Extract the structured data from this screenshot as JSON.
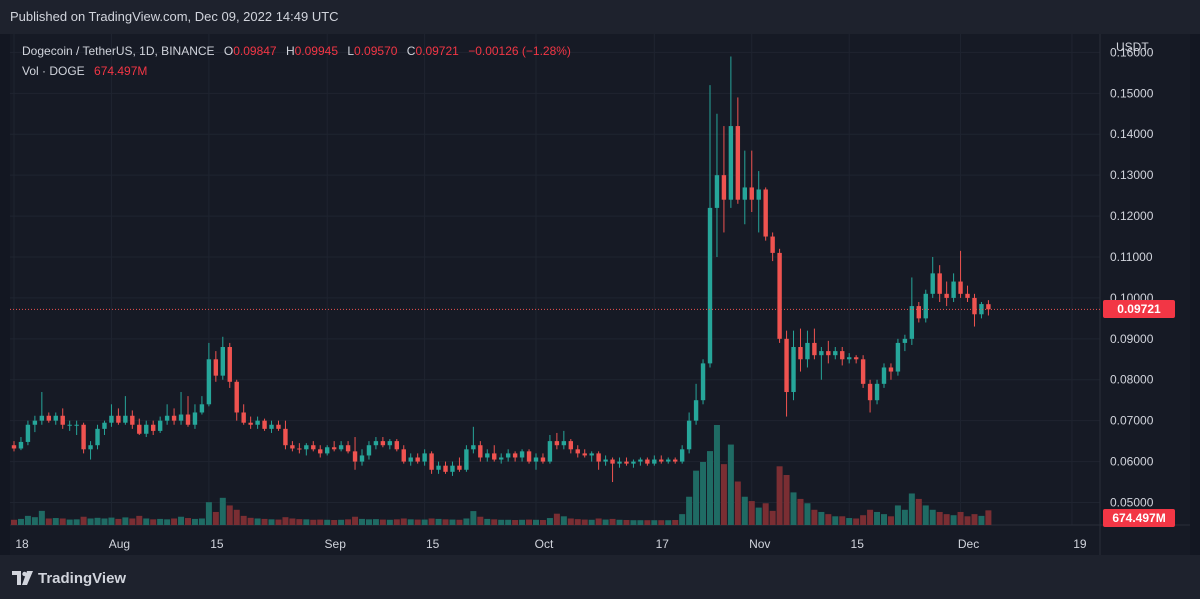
{
  "header": {
    "published": "Published on TradingView.com, Dec 09, 2022 14:49 UTC"
  },
  "legend": {
    "symbol": "Dogecoin / TetherUS, 1D, BINANCE",
    "open_label": "O",
    "open": "0.09847",
    "high_label": "H",
    "high": "0.09945",
    "low_label": "L",
    "low": "0.09570",
    "close_label": "C",
    "close": "0.09721",
    "change": "−0.00126 (−1.28%)",
    "vol_label": "Vol · DOGE",
    "vol": "674.497M"
  },
  "price_tag": "0.09721",
  "vol_tag": "674.497M",
  "footer": {
    "brand": "TradingView"
  },
  "colors": {
    "up": "#26a69a",
    "down": "#ef5350",
    "up_vol": "#1f6b64",
    "down_vol": "#7a2e33",
    "bg": "#161a25"
  },
  "chart_data": {
    "type": "candlestick",
    "currency_label": "USDT",
    "ylim": [
      0.0445,
      0.1645
    ],
    "y_ticks": [
      "0.16000",
      "0.15000",
      "0.14000",
      "0.13000",
      "0.12000",
      "0.11000",
      "0.10000",
      "0.09000",
      "0.08000",
      "0.07000",
      "0.06000",
      "0.05000"
    ],
    "x_ticks": [
      {
        "label": "18",
        "index": 0
      },
      {
        "label": "Aug",
        "index": 14
      },
      {
        "label": "15",
        "index": 28
      },
      {
        "label": "Sep",
        "index": 45
      },
      {
        "label": "15",
        "index": 59
      },
      {
        "label": "Oct",
        "index": 75
      },
      {
        "label": "17",
        "index": 92
      },
      {
        "label": "Nov",
        "index": 106
      },
      {
        "label": "15",
        "index": 120
      },
      {
        "label": "Dec",
        "index": 136
      },
      {
        "label": "19",
        "index": 152
      }
    ],
    "last_price": 0.09721,
    "volume_unit": "M DOGE",
    "volume_max": 4600,
    "candles": [
      {
        "o": 0.064,
        "h": 0.065,
        "l": 0.0625,
        "c": 0.0632,
        "v": 240
      },
      {
        "o": 0.0632,
        "h": 0.066,
        "l": 0.0628,
        "c": 0.0648,
        "v": 280
      },
      {
        "o": 0.0648,
        "h": 0.07,
        "l": 0.064,
        "c": 0.069,
        "v": 420
      },
      {
        "o": 0.069,
        "h": 0.0712,
        "l": 0.0672,
        "c": 0.07,
        "v": 360
      },
      {
        "o": 0.07,
        "h": 0.077,
        "l": 0.069,
        "c": 0.0712,
        "v": 650
      },
      {
        "o": 0.0712,
        "h": 0.072,
        "l": 0.0695,
        "c": 0.07,
        "v": 300
      },
      {
        "o": 0.07,
        "h": 0.072,
        "l": 0.069,
        "c": 0.0712,
        "v": 320
      },
      {
        "o": 0.0712,
        "h": 0.073,
        "l": 0.068,
        "c": 0.069,
        "v": 300
      },
      {
        "o": 0.069,
        "h": 0.07,
        "l": 0.0675,
        "c": 0.069,
        "v": 250
      },
      {
        "o": 0.069,
        "h": 0.07,
        "l": 0.0665,
        "c": 0.069,
        "v": 260
      },
      {
        "o": 0.069,
        "h": 0.0695,
        "l": 0.062,
        "c": 0.063,
        "v": 380
      },
      {
        "o": 0.063,
        "h": 0.065,
        "l": 0.0605,
        "c": 0.064,
        "v": 300
      },
      {
        "o": 0.064,
        "h": 0.069,
        "l": 0.063,
        "c": 0.068,
        "v": 330
      },
      {
        "o": 0.068,
        "h": 0.07,
        "l": 0.0665,
        "c": 0.0695,
        "v": 300
      },
      {
        "o": 0.0695,
        "h": 0.074,
        "l": 0.0685,
        "c": 0.0712,
        "v": 340
      },
      {
        "o": 0.0712,
        "h": 0.073,
        "l": 0.069,
        "c": 0.0695,
        "v": 280
      },
      {
        "o": 0.0695,
        "h": 0.076,
        "l": 0.069,
        "c": 0.0712,
        "v": 350
      },
      {
        "o": 0.0712,
        "h": 0.0725,
        "l": 0.068,
        "c": 0.069,
        "v": 300
      },
      {
        "o": 0.069,
        "h": 0.0705,
        "l": 0.0665,
        "c": 0.0668,
        "v": 420
      },
      {
        "o": 0.0668,
        "h": 0.07,
        "l": 0.066,
        "c": 0.069,
        "v": 300
      },
      {
        "o": 0.069,
        "h": 0.07,
        "l": 0.0665,
        "c": 0.0675,
        "v": 260
      },
      {
        "o": 0.0675,
        "h": 0.071,
        "l": 0.067,
        "c": 0.07,
        "v": 280
      },
      {
        "o": 0.07,
        "h": 0.074,
        "l": 0.069,
        "c": 0.0712,
        "v": 260
      },
      {
        "o": 0.0712,
        "h": 0.073,
        "l": 0.069,
        "c": 0.07,
        "v": 300
      },
      {
        "o": 0.07,
        "h": 0.077,
        "l": 0.069,
        "c": 0.0715,
        "v": 380
      },
      {
        "o": 0.0715,
        "h": 0.076,
        "l": 0.0685,
        "c": 0.069,
        "v": 320
      },
      {
        "o": 0.069,
        "h": 0.074,
        "l": 0.068,
        "c": 0.072,
        "v": 280
      },
      {
        "o": 0.072,
        "h": 0.076,
        "l": 0.0715,
        "c": 0.074,
        "v": 300
      },
      {
        "o": 0.074,
        "h": 0.089,
        "l": 0.0735,
        "c": 0.085,
        "v": 1050
      },
      {
        "o": 0.085,
        "h": 0.087,
        "l": 0.0795,
        "c": 0.081,
        "v": 600
      },
      {
        "o": 0.081,
        "h": 0.0905,
        "l": 0.08,
        "c": 0.088,
        "v": 1250
      },
      {
        "o": 0.088,
        "h": 0.089,
        "l": 0.078,
        "c": 0.0795,
        "v": 900
      },
      {
        "o": 0.0795,
        "h": 0.08,
        "l": 0.07,
        "c": 0.072,
        "v": 700
      },
      {
        "o": 0.072,
        "h": 0.074,
        "l": 0.069,
        "c": 0.0695,
        "v": 420
      },
      {
        "o": 0.0695,
        "h": 0.071,
        "l": 0.068,
        "c": 0.069,
        "v": 330
      },
      {
        "o": 0.069,
        "h": 0.071,
        "l": 0.068,
        "c": 0.07,
        "v": 300
      },
      {
        "o": 0.07,
        "h": 0.0705,
        "l": 0.0675,
        "c": 0.068,
        "v": 280
      },
      {
        "o": 0.068,
        "h": 0.07,
        "l": 0.067,
        "c": 0.069,
        "v": 260
      },
      {
        "o": 0.069,
        "h": 0.07,
        "l": 0.0675,
        "c": 0.068,
        "v": 250
      },
      {
        "o": 0.068,
        "h": 0.07,
        "l": 0.063,
        "c": 0.064,
        "v": 360
      },
      {
        "o": 0.064,
        "h": 0.065,
        "l": 0.0625,
        "c": 0.0632,
        "v": 300
      },
      {
        "o": 0.0632,
        "h": 0.0645,
        "l": 0.062,
        "c": 0.063,
        "v": 270
      },
      {
        "o": 0.063,
        "h": 0.0645,
        "l": 0.0615,
        "c": 0.064,
        "v": 260
      },
      {
        "o": 0.064,
        "h": 0.065,
        "l": 0.0625,
        "c": 0.063,
        "v": 240
      },
      {
        "o": 0.063,
        "h": 0.064,
        "l": 0.061,
        "c": 0.062,
        "v": 250
      },
      {
        "o": 0.062,
        "h": 0.064,
        "l": 0.0615,
        "c": 0.0635,
        "v": 240
      },
      {
        "o": 0.0635,
        "h": 0.065,
        "l": 0.0625,
        "c": 0.063,
        "v": 230
      },
      {
        "o": 0.063,
        "h": 0.065,
        "l": 0.0625,
        "c": 0.064,
        "v": 240
      },
      {
        "o": 0.064,
        "h": 0.065,
        "l": 0.062,
        "c": 0.0625,
        "v": 260
      },
      {
        "o": 0.0625,
        "h": 0.066,
        "l": 0.058,
        "c": 0.06,
        "v": 380
      },
      {
        "o": 0.06,
        "h": 0.063,
        "l": 0.059,
        "c": 0.0615,
        "v": 280
      },
      {
        "o": 0.0615,
        "h": 0.065,
        "l": 0.0605,
        "c": 0.064,
        "v": 260
      },
      {
        "o": 0.064,
        "h": 0.066,
        "l": 0.063,
        "c": 0.065,
        "v": 270
      },
      {
        "o": 0.065,
        "h": 0.066,
        "l": 0.0635,
        "c": 0.064,
        "v": 250
      },
      {
        "o": 0.064,
        "h": 0.0655,
        "l": 0.063,
        "c": 0.065,
        "v": 240
      },
      {
        "o": 0.065,
        "h": 0.0655,
        "l": 0.0625,
        "c": 0.063,
        "v": 260
      },
      {
        "o": 0.063,
        "h": 0.064,
        "l": 0.0595,
        "c": 0.06,
        "v": 300
      },
      {
        "o": 0.06,
        "h": 0.062,
        "l": 0.059,
        "c": 0.061,
        "v": 260
      },
      {
        "o": 0.061,
        "h": 0.062,
        "l": 0.0595,
        "c": 0.06,
        "v": 250
      },
      {
        "o": 0.06,
        "h": 0.063,
        "l": 0.059,
        "c": 0.062,
        "v": 250
      },
      {
        "o": 0.062,
        "h": 0.0625,
        "l": 0.057,
        "c": 0.058,
        "v": 300
      },
      {
        "o": 0.058,
        "h": 0.06,
        "l": 0.057,
        "c": 0.059,
        "v": 280
      },
      {
        "o": 0.059,
        "h": 0.06,
        "l": 0.057,
        "c": 0.0575,
        "v": 260
      },
      {
        "o": 0.0575,
        "h": 0.06,
        "l": 0.0565,
        "c": 0.059,
        "v": 250
      },
      {
        "o": 0.059,
        "h": 0.061,
        "l": 0.0575,
        "c": 0.058,
        "v": 240
      },
      {
        "o": 0.058,
        "h": 0.064,
        "l": 0.0575,
        "c": 0.063,
        "v": 300
      },
      {
        "o": 0.063,
        "h": 0.0685,
        "l": 0.062,
        "c": 0.064,
        "v": 640
      },
      {
        "o": 0.064,
        "h": 0.065,
        "l": 0.06,
        "c": 0.061,
        "v": 380
      },
      {
        "o": 0.061,
        "h": 0.063,
        "l": 0.06,
        "c": 0.062,
        "v": 280
      },
      {
        "o": 0.062,
        "h": 0.064,
        "l": 0.06,
        "c": 0.0605,
        "v": 260
      },
      {
        "o": 0.0605,
        "h": 0.062,
        "l": 0.0595,
        "c": 0.061,
        "v": 240
      },
      {
        "o": 0.061,
        "h": 0.063,
        "l": 0.06,
        "c": 0.062,
        "v": 240
      },
      {
        "o": 0.062,
        "h": 0.0625,
        "l": 0.06,
        "c": 0.061,
        "v": 230
      },
      {
        "o": 0.061,
        "h": 0.063,
        "l": 0.06,
        "c": 0.0625,
        "v": 240
      },
      {
        "o": 0.0625,
        "h": 0.063,
        "l": 0.0595,
        "c": 0.06,
        "v": 250
      },
      {
        "o": 0.06,
        "h": 0.062,
        "l": 0.058,
        "c": 0.061,
        "v": 240
      },
      {
        "o": 0.061,
        "h": 0.062,
        "l": 0.0595,
        "c": 0.06,
        "v": 230
      },
      {
        "o": 0.06,
        "h": 0.0665,
        "l": 0.0595,
        "c": 0.065,
        "v": 320
      },
      {
        "o": 0.065,
        "h": 0.067,
        "l": 0.063,
        "c": 0.064,
        "v": 520
      },
      {
        "o": 0.064,
        "h": 0.0675,
        "l": 0.063,
        "c": 0.065,
        "v": 400
      },
      {
        "o": 0.065,
        "h": 0.0655,
        "l": 0.062,
        "c": 0.063,
        "v": 300
      },
      {
        "o": 0.063,
        "h": 0.064,
        "l": 0.061,
        "c": 0.062,
        "v": 270
      },
      {
        "o": 0.062,
        "h": 0.063,
        "l": 0.061,
        "c": 0.0615,
        "v": 250
      },
      {
        "o": 0.0615,
        "h": 0.0625,
        "l": 0.06,
        "c": 0.062,
        "v": 240
      },
      {
        "o": 0.062,
        "h": 0.0625,
        "l": 0.058,
        "c": 0.06,
        "v": 300
      },
      {
        "o": 0.06,
        "h": 0.0615,
        "l": 0.059,
        "c": 0.0605,
        "v": 250
      },
      {
        "o": 0.0605,
        "h": 0.061,
        "l": 0.055,
        "c": 0.0595,
        "v": 280
      },
      {
        "o": 0.0595,
        "h": 0.061,
        "l": 0.0585,
        "c": 0.06,
        "v": 240
      },
      {
        "o": 0.06,
        "h": 0.061,
        "l": 0.059,
        "c": 0.0595,
        "v": 230
      },
      {
        "o": 0.0595,
        "h": 0.0605,
        "l": 0.0585,
        "c": 0.06,
        "v": 220
      },
      {
        "o": 0.06,
        "h": 0.061,
        "l": 0.059,
        "c": 0.0605,
        "v": 220
      },
      {
        "o": 0.0605,
        "h": 0.061,
        "l": 0.059,
        "c": 0.0595,
        "v": 220
      },
      {
        "o": 0.0595,
        "h": 0.0615,
        "l": 0.059,
        "c": 0.0605,
        "v": 220
      },
      {
        "o": 0.0605,
        "h": 0.0615,
        "l": 0.0595,
        "c": 0.06,
        "v": 220
      },
      {
        "o": 0.06,
        "h": 0.061,
        "l": 0.0595,
        "c": 0.0605,
        "v": 220
      },
      {
        "o": 0.0605,
        "h": 0.061,
        "l": 0.0595,
        "c": 0.06,
        "v": 230
      },
      {
        "o": 0.06,
        "h": 0.064,
        "l": 0.0595,
        "c": 0.063,
        "v": 500
      },
      {
        "o": 0.063,
        "h": 0.072,
        "l": 0.062,
        "c": 0.07,
        "v": 1300
      },
      {
        "o": 0.07,
        "h": 0.079,
        "l": 0.069,
        "c": 0.075,
        "v": 2500
      },
      {
        "o": 0.075,
        "h": 0.085,
        "l": 0.074,
        "c": 0.084,
        "v": 2900
      },
      {
        "o": 0.084,
        "h": 0.152,
        "l": 0.083,
        "c": 0.122,
        "v": 3400
      },
      {
        "o": 0.122,
        "h": 0.145,
        "l": 0.11,
        "c": 0.13,
        "v": 4600
      },
      {
        "o": 0.13,
        "h": 0.142,
        "l": 0.116,
        "c": 0.124,
        "v": 2800
      },
      {
        "o": 0.124,
        "h": 0.159,
        "l": 0.122,
        "c": 0.142,
        "v": 3700
      },
      {
        "o": 0.142,
        "h": 0.149,
        "l": 0.123,
        "c": 0.124,
        "v": 2000
      },
      {
        "o": 0.124,
        "h": 0.136,
        "l": 0.118,
        "c": 0.127,
        "v": 1300
      },
      {
        "o": 0.127,
        "h": 0.136,
        "l": 0.121,
        "c": 0.124,
        "v": 1100
      },
      {
        "o": 0.124,
        "h": 0.131,
        "l": 0.116,
        "c": 0.1265,
        "v": 800
      },
      {
        "o": 0.1265,
        "h": 0.127,
        "l": 0.114,
        "c": 0.115,
        "v": 1000
      },
      {
        "o": 0.115,
        "h": 0.116,
        "l": 0.109,
        "c": 0.111,
        "v": 650
      },
      {
        "o": 0.111,
        "h": 0.112,
        "l": 0.089,
        "c": 0.09,
        "v": 2700
      },
      {
        "o": 0.09,
        "h": 0.092,
        "l": 0.071,
        "c": 0.077,
        "v": 2300
      },
      {
        "o": 0.077,
        "h": 0.092,
        "l": 0.075,
        "c": 0.088,
        "v": 1500
      },
      {
        "o": 0.088,
        "h": 0.0925,
        "l": 0.082,
        "c": 0.085,
        "v": 1200
      },
      {
        "o": 0.085,
        "h": 0.092,
        "l": 0.083,
        "c": 0.089,
        "v": 1000
      },
      {
        "o": 0.089,
        "h": 0.0925,
        "l": 0.085,
        "c": 0.086,
        "v": 700
      },
      {
        "o": 0.086,
        "h": 0.088,
        "l": 0.08,
        "c": 0.087,
        "v": 600
      },
      {
        "o": 0.087,
        "h": 0.0895,
        "l": 0.084,
        "c": 0.086,
        "v": 500
      },
      {
        "o": 0.086,
        "h": 0.088,
        "l": 0.085,
        "c": 0.087,
        "v": 400
      },
      {
        "o": 0.087,
        "h": 0.088,
        "l": 0.0835,
        "c": 0.085,
        "v": 400
      },
      {
        "o": 0.085,
        "h": 0.0865,
        "l": 0.084,
        "c": 0.0855,
        "v": 320
      },
      {
        "o": 0.0855,
        "h": 0.086,
        "l": 0.084,
        "c": 0.085,
        "v": 300
      },
      {
        "o": 0.085,
        "h": 0.086,
        "l": 0.078,
        "c": 0.079,
        "v": 450
      },
      {
        "o": 0.079,
        "h": 0.08,
        "l": 0.072,
        "c": 0.075,
        "v": 700
      },
      {
        "o": 0.075,
        "h": 0.08,
        "l": 0.074,
        "c": 0.079,
        "v": 600
      },
      {
        "o": 0.079,
        "h": 0.084,
        "l": 0.078,
        "c": 0.083,
        "v": 500
      },
      {
        "o": 0.083,
        "h": 0.084,
        "l": 0.08,
        "c": 0.082,
        "v": 400
      },
      {
        "o": 0.082,
        "h": 0.09,
        "l": 0.081,
        "c": 0.089,
        "v": 900
      },
      {
        "o": 0.089,
        "h": 0.091,
        "l": 0.087,
        "c": 0.09,
        "v": 700
      },
      {
        "o": 0.09,
        "h": 0.105,
        "l": 0.0885,
        "c": 0.098,
        "v": 1450
      },
      {
        "o": 0.098,
        "h": 0.099,
        "l": 0.094,
        "c": 0.095,
        "v": 1200
      },
      {
        "o": 0.095,
        "h": 0.102,
        "l": 0.094,
        "c": 0.101,
        "v": 900
      },
      {
        "o": 0.101,
        "h": 0.11,
        "l": 0.1,
        "c": 0.106,
        "v": 700
      },
      {
        "o": 0.106,
        "h": 0.108,
        "l": 0.099,
        "c": 0.101,
        "v": 600
      },
      {
        "o": 0.101,
        "h": 0.104,
        "l": 0.098,
        "c": 0.1,
        "v": 500
      },
      {
        "o": 0.1,
        "h": 0.106,
        "l": 0.099,
        "c": 0.104,
        "v": 450
      },
      {
        "o": 0.104,
        "h": 0.1115,
        "l": 0.1,
        "c": 0.101,
        "v": 600
      },
      {
        "o": 0.101,
        "h": 0.103,
        "l": 0.099,
        "c": 0.1,
        "v": 400
      },
      {
        "o": 0.1,
        "h": 0.101,
        "l": 0.093,
        "c": 0.096,
        "v": 500
      },
      {
        "o": 0.096,
        "h": 0.099,
        "l": 0.095,
        "c": 0.0985,
        "v": 420
      },
      {
        "o": 0.09847,
        "h": 0.09945,
        "l": 0.0957,
        "c": 0.09721,
        "v": 674
      }
    ]
  }
}
